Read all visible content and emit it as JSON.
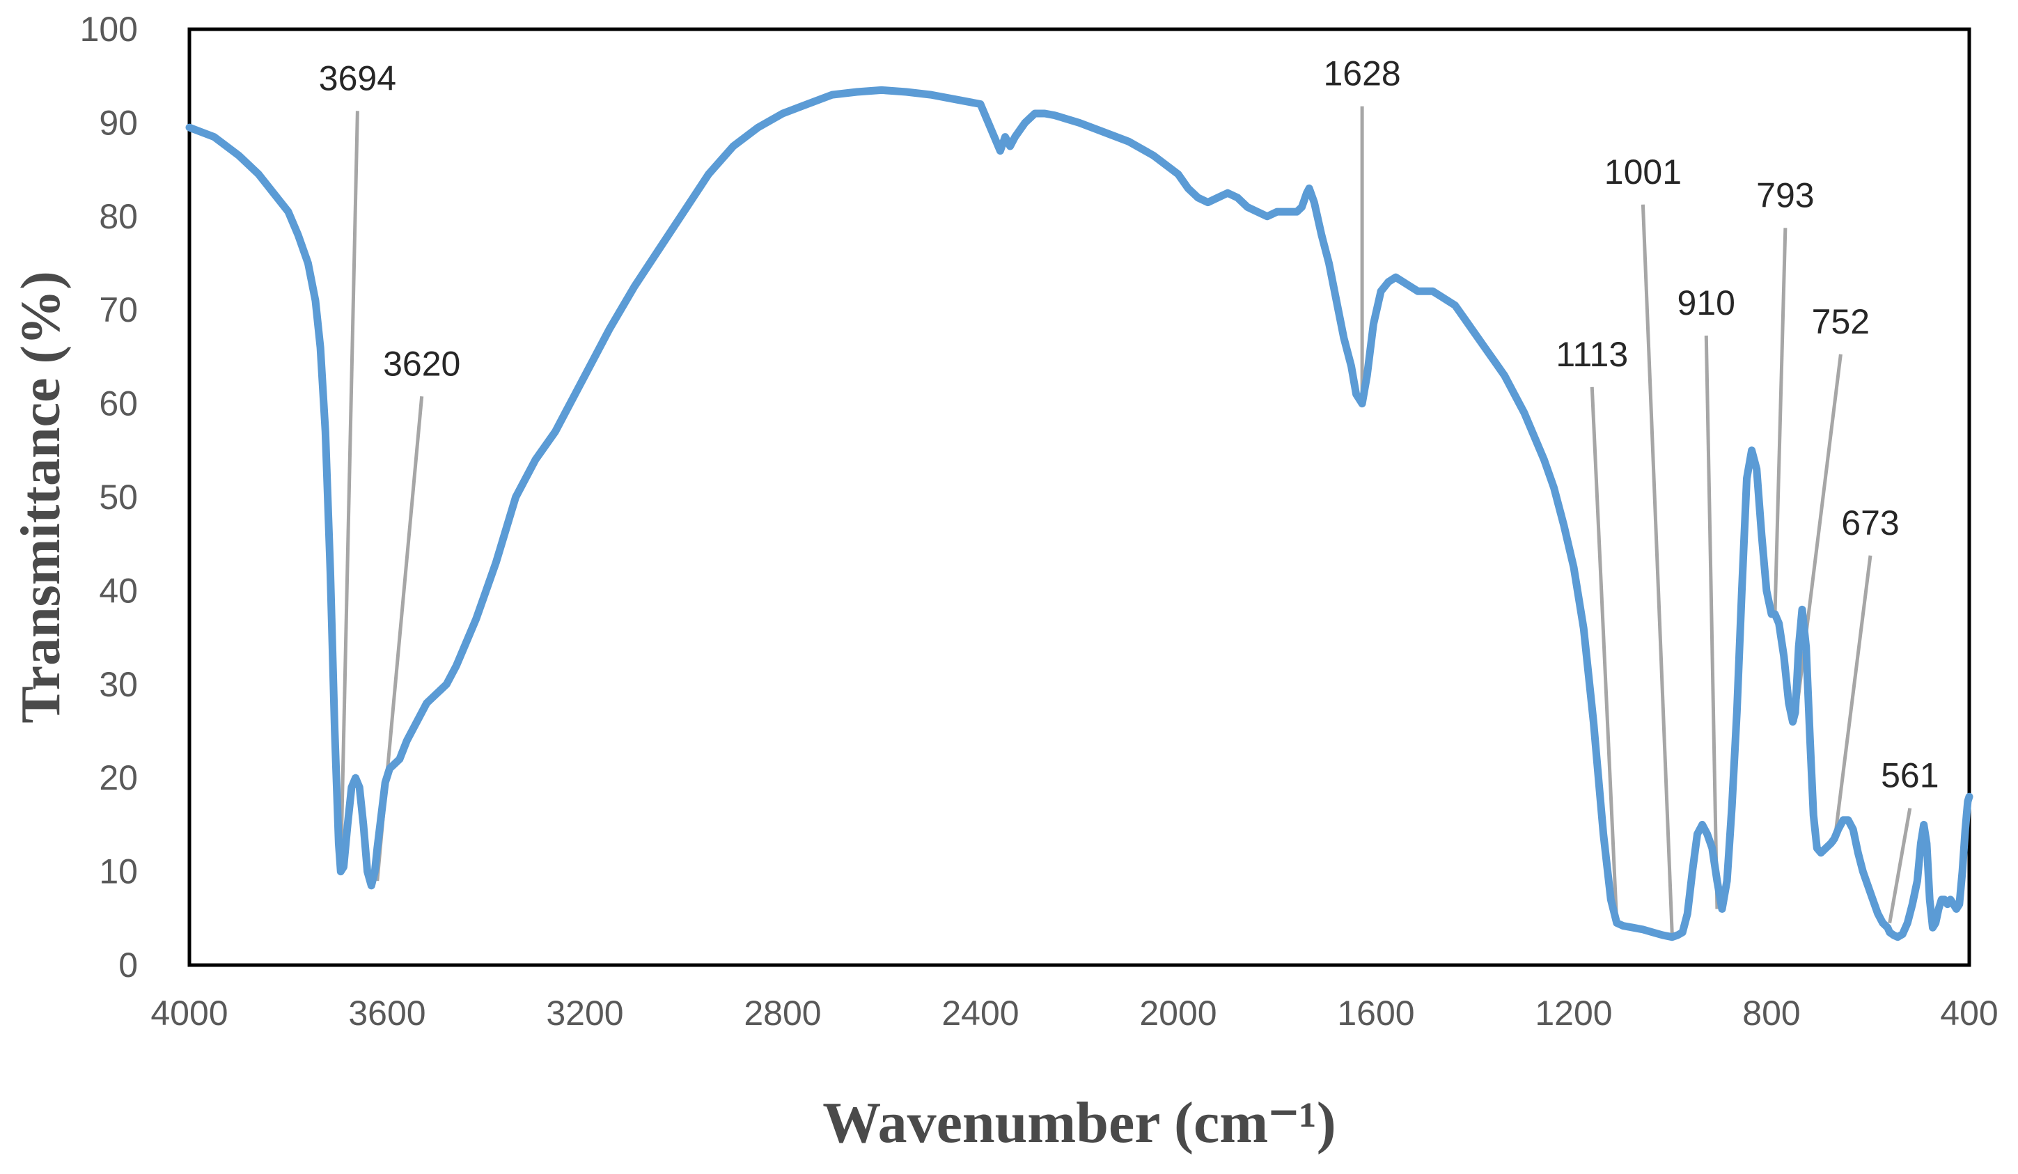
{
  "chart_data": {
    "type": "line",
    "title": "",
    "xlabel": "Wavenumber (cm⁻¹)",
    "ylabel": "Transmittance (%)",
    "xlim": [
      4000,
      400
    ],
    "ylim": [
      0,
      100
    ],
    "x_reversed": true,
    "grid": false,
    "legend": "none",
    "line_color": "#5B9BD5",
    "leader_color": "#A6A6A6",
    "xticks": [
      "4000",
      "3600",
      "3200",
      "2800",
      "2400",
      "2000",
      "1600",
      "1200",
      "800",
      "400"
    ],
    "yticks": [
      "0",
      "10",
      "20",
      "30",
      "40",
      "50",
      "60",
      "70",
      "80",
      "90",
      "100"
    ],
    "series": [
      {
        "x": [
          4000,
          3950,
          3900,
          3860,
          3830,
          3800,
          3780,
          3760,
          3745,
          3735,
          3725,
          3715,
          3706,
          3698,
          3694,
          3688,
          3680,
          3672,
          3664,
          3656,
          3648,
          3640,
          3632,
          3625,
          3620,
          3612,
          3604,
          3595,
          3585,
          3575,
          3560,
          3540,
          3520,
          3500,
          3480,
          3460,
          3440,
          3420,
          3400,
          3380,
          3360,
          3340,
          3320,
          3300,
          3280,
          3260,
          3240,
          3220,
          3200,
          3150,
          3100,
          3050,
          3000,
          2950,
          2900,
          2850,
          2800,
          2750,
          2700,
          2650,
          2600,
          2550,
          2500,
          2450,
          2400,
          2380,
          2360,
          2350,
          2340,
          2330,
          2310,
          2290,
          2270,
          2250,
          2200,
          2150,
          2100,
          2050,
          2000,
          1980,
          1960,
          1940,
          1920,
          1900,
          1880,
          1860,
          1840,
          1820,
          1800,
          1780,
          1760,
          1750,
          1740,
          1735,
          1725,
          1710,
          1695,
          1680,
          1665,
          1650,
          1640,
          1628,
          1618,
          1605,
          1590,
          1575,
          1560,
          1545,
          1530,
          1515,
          1500,
          1485,
          1470,
          1455,
          1440,
          1420,
          1400,
          1380,
          1360,
          1340,
          1320,
          1300,
          1280,
          1260,
          1240,
          1220,
          1200,
          1180,
          1160,
          1140,
          1125,
          1113,
          1100,
          1080,
          1060,
          1040,
          1020,
          1001,
          990,
          980,
          970,
          960,
          950,
          940,
          930,
          920,
          910,
          900,
          890,
          880,
          870,
          860,
          850,
          840,
          830,
          820,
          810,
          800,
          793,
          785,
          775,
          765,
          757,
          752,
          745,
          738,
          730,
          722,
          715,
          708,
          700,
          690,
          680,
          673,
          665,
          655,
          645,
          635,
          625,
          615,
          605,
          595,
          585,
          575,
          565,
          561,
          553,
          545,
          535,
          525,
          515,
          505,
          498,
          492,
          486,
          480,
          474,
          468,
          462,
          456,
          450,
          444,
          438,
          432,
          426,
          420,
          414,
          408,
          403,
          400
        ],
        "y": [
          89.5,
          88.5,
          86.5,
          84.5,
          82.5,
          80.5,
          78,
          75,
          71,
          66,
          57,
          42,
          25,
          13,
          10,
          10.5,
          15,
          19,
          20,
          19,
          15,
          10,
          8.5,
          10,
          12.5,
          16,
          19.5,
          21,
          21.5,
          22,
          24,
          26,
          28,
          29,
          30,
          32,
          34.5,
          37,
          40,
          43,
          46.5,
          50,
          52,
          54,
          55.5,
          57,
          59,
          61,
          63,
          68,
          72.5,
          76.5,
          80.5,
          84.5,
          87.5,
          89.5,
          91,
          92,
          93,
          93.3,
          93.5,
          93.3,
          93,
          92.5,
          92,
          89.5,
          87,
          88.5,
          87.5,
          88.5,
          90,
          91,
          91,
          90.8,
          90,
          89,
          88,
          86.5,
          84.5,
          83,
          82,
          81.5,
          82,
          82.5,
          82,
          81,
          80.5,
          80,
          80.5,
          80.5,
          80.5,
          81,
          82.5,
          83,
          81.5,
          78,
          75,
          71,
          67,
          64,
          61,
          60,
          63,
          68.5,
          72,
          73,
          73.5,
          73,
          72.5,
          72,
          72,
          72,
          71.5,
          71,
          70.5,
          69,
          67.5,
          66,
          64.5,
          63,
          61,
          59,
          56.5,
          54,
          51,
          47,
          42.5,
          36,
          26,
          14,
          7,
          4.5,
          4.2,
          4,
          3.8,
          3.5,
          3.2,
          3,
          3.2,
          3.5,
          5.5,
          10,
          14,
          15,
          14,
          12.5,
          9,
          6,
          9,
          17,
          27,
          40,
          52,
          55,
          53,
          46,
          40,
          37.5,
          37.5,
          36.5,
          33,
          28,
          26,
          27,
          34,
          38,
          34,
          24,
          16,
          12.5,
          12,
          12.5,
          13,
          13.5,
          14.5,
          15.5,
          15.5,
          14.5,
          12,
          10,
          8.5,
          7,
          5.5,
          4.5,
          4,
          3.5,
          3.2,
          3,
          3.3,
          4.5,
          6.5,
          9,
          13,
          15,
          13,
          7,
          4,
          4.5,
          6,
          7,
          7,
          6.5,
          7,
          6.5,
          6,
          6.5,
          10,
          14.5,
          17.5,
          18
        ]
      }
    ],
    "annotations": [
      {
        "label": "3694",
        "x": 3694,
        "y": 10,
        "text_x": 3660,
        "text_y": 93.5
      },
      {
        "label": "3620",
        "x": 3620,
        "y": 9,
        "text_x": 3530,
        "text_y": 63
      },
      {
        "label": "1628",
        "x": 1628,
        "y": 60,
        "text_x": 1628,
        "text_y": 94
      },
      {
        "label": "1113",
        "x": 1113,
        "y": 4.5,
        "text_x": 1163,
        "text_y": 64
      },
      {
        "label": "1001",
        "x": 1001,
        "y": 3.3,
        "text_x": 1060,
        "text_y": 83.5
      },
      {
        "label": "910",
        "x": 910,
        "y": 6,
        "text_x": 932,
        "text_y": 69.5
      },
      {
        "label": "793",
        "x": 793,
        "y": 37.5,
        "text_x": 772,
        "text_y": 81
      },
      {
        "label": "752",
        "x": 752,
        "y": 26,
        "text_x": 660,
        "text_y": 67.5
      },
      {
        "label": "673",
        "x": 673,
        "y": 13,
        "text_x": 600,
        "text_y": 46
      },
      {
        "label": "561",
        "x": 561,
        "y": 4.5,
        "text_x": 520,
        "text_y": 19
      }
    ]
  }
}
